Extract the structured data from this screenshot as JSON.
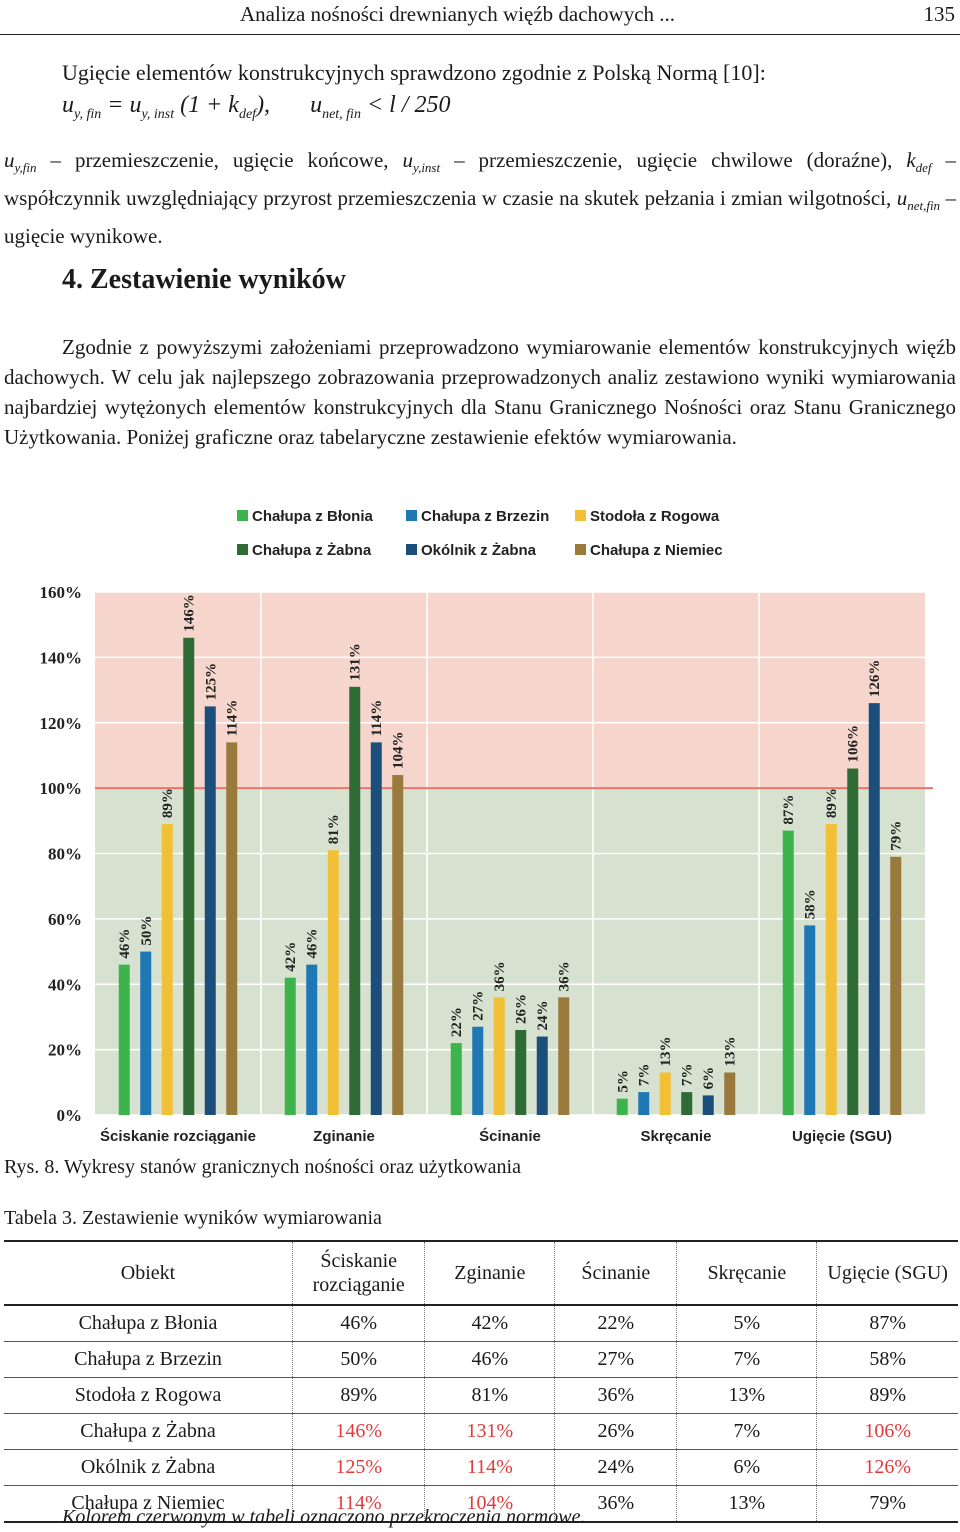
{
  "header": {
    "title": "Analiza nośności drewnianych więźb dachowych ...",
    "page_number": "135"
  },
  "intro": "Ugięcie elementów konstrukcyjnych sprawdzono zgodnie z Polską Normą [10]:",
  "formula": {
    "u": "u",
    "sub_fin": "y, fin",
    "eq": " = ",
    "sub_inst": "y, inst",
    "paren": " (1 + k",
    "sub_def": "def",
    "close": "),",
    "u2": "u",
    "sub_net": "net, fin",
    "limit": " < l / 250"
  },
  "definitions": {
    "t1": "u",
    "s1": "y,fin",
    "t2": " – przemieszczenie, ugięcie końcowe, ",
    "t3": "u",
    "s3": "y,inst",
    "t4": " – przemieszczenie, ugięcie chwilowe (doraźne), ",
    "t5": "k",
    "s5": "def",
    "t6": " – współczynnik uwzględniający przyrost przemieszczenia w czasie na skutek pełzania i zmian wilgotności, ",
    "t7": "u",
    "s7": "net,fin",
    "t8": " – ugięcie wynikowe."
  },
  "section_title": "4. Zestawienie wyników",
  "body_text": "Zgodnie z powyższymi założeniami przeprowadzono wymiarowanie elementów konstrukcyjnych więźb dachowych. W celu jak najlepszego zobrazowania przeprowadzonych analiz zestawiono wyniki wymiarowania najbardziej wytężonych elementów konstrukcyjnych dla Stanu Granicznego Nośności oraz Stanu Granicznego Użytkowania. Poniżej graficzne oraz tabelaryczne zestawienie efektów wymiarowania.",
  "chart_data": {
    "type": "bar",
    "categories": [
      "Ściskanie rozciąganie",
      "Zginanie",
      "Ścinanie",
      "Skręcanie",
      "Ugięcie (SGU)"
    ],
    "series": [
      {
        "name": "Chałupa z Błonia",
        "color": "#3cb44b",
        "values": [
          46,
          42,
          22,
          5,
          87
        ]
      },
      {
        "name": "Chałupa z Brzezin",
        "color": "#1f77b4",
        "values": [
          50,
          46,
          27,
          7,
          58
        ]
      },
      {
        "name": "Stodoła z Rogowa",
        "color": "#f2c037",
        "values": [
          89,
          81,
          36,
          13,
          89
        ]
      },
      {
        "name": "Chałupa z Żabna",
        "color": "#2e6b35",
        "values": [
          146,
          131,
          26,
          7,
          106
        ]
      },
      {
        "name": "Okólnik z Żabna",
        "color": "#1b4e7a",
        "values": [
          125,
          114,
          24,
          6,
          126
        ]
      },
      {
        "name": "Chałupa z Niemiec",
        "color": "#9a7a3c",
        "values": [
          114,
          104,
          36,
          13,
          79
        ]
      }
    ],
    "y_ticks": [
      "0%",
      "20%",
      "40%",
      "60%",
      "80%",
      "100%",
      "120%",
      "140%",
      "160%"
    ],
    "ylim": [
      0,
      160
    ],
    "unit": "%",
    "threshold": 100,
    "legend_position": "top",
    "zones": {
      "ok_color": "#d6e2cf",
      "exceed_color": "#f6d6cc",
      "threshold_line": "#e8776b"
    }
  },
  "caption": "Rys. 8.   Wykresy stanów granicznych nośności oraz użytkowania",
  "table_title": "Tabela 3. Zestawienie wyników wymiarowania",
  "table": {
    "headers": [
      "Obiekt",
      "Ściskanie rozciąganie",
      "Zginanie",
      "Ścinanie",
      "Skręcanie",
      "Ugięcie (SGU)"
    ],
    "rows": [
      [
        "Chałupa z Błonia",
        "46%",
        "42%",
        "22%",
        "5%",
        "87%"
      ],
      [
        "Chałupa z Brzezin",
        "50%",
        "46%",
        "27%",
        "7%",
        "58%"
      ],
      [
        "Stodoła z Rogowa",
        "89%",
        "81%",
        "36%",
        "13%",
        "89%"
      ],
      [
        "Chałupa z Żabna",
        "146%",
        "131%",
        "26%",
        "7%",
        "106%"
      ],
      [
        "Okólnik z Żabna",
        "125%",
        "114%",
        "24%",
        "6%",
        "126%"
      ],
      [
        "Chałupa z Niemiec",
        "114%",
        "104%",
        "36%",
        "13%",
        "79%"
      ]
    ],
    "highlight_color": "#e23a3a"
  },
  "note": "Kolorem czerwonym w tabeli oznaczono przekroczenia normowe."
}
